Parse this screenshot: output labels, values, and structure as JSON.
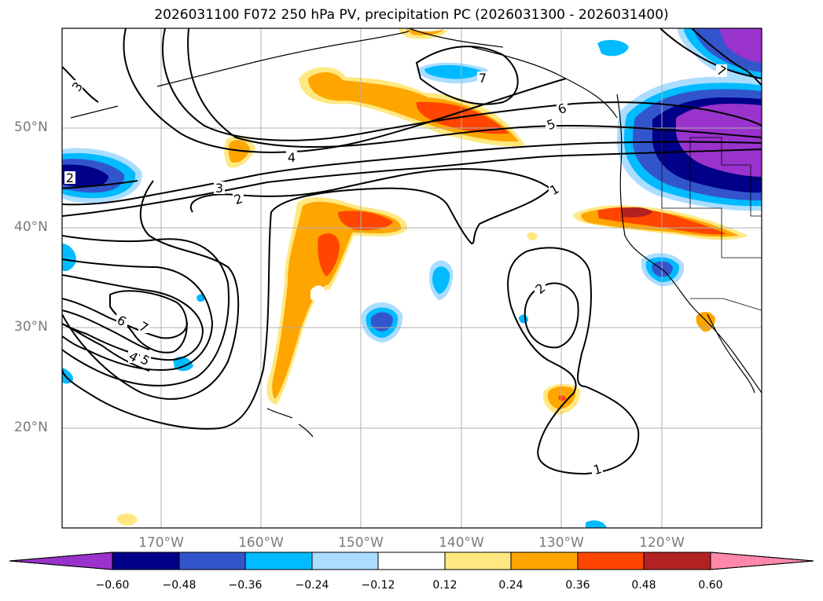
{
  "title": "2026031100 F072 250 hPa PV, precipitation PC (2026031300 - 2026031400)",
  "map": {
    "lat_labels": [
      "50°N",
      "40°N",
      "30°N",
      "20°N"
    ],
    "lon_labels": [
      "170°W",
      "160°W",
      "150°W",
      "140°W",
      "130°W",
      "120°W"
    ],
    "lat_values": [
      50,
      40,
      30,
      20
    ],
    "lon_values": [
      -170,
      -160,
      -150,
      -140,
      -130,
      -120
    ],
    "lat_range": [
      10,
      60
    ],
    "lon_range": [
      -180,
      -110
    ],
    "pv_contour_labels": [
      "3",
      "4",
      "3",
      "2",
      "1",
      "5",
      "6",
      "7",
      "7",
      "2",
      "1",
      "6",
      "7",
      "4",
      "5",
      "2"
    ],
    "grid": true
  },
  "colorbar": {
    "ticks": [
      "−0.60",
      "−0.48",
      "−0.36",
      "−0.24",
      "−0.12",
      "0.12",
      "0.24",
      "0.36",
      "0.48",
      "0.60"
    ],
    "colors": [
      "#9933CC",
      "#000088",
      "#3355CC",
      "#00BBFF",
      "#AADDFF",
      "#FFFFFF",
      "#FFE880",
      "#FFA500",
      "#FF4500",
      "#B22222",
      "#FF88AA"
    ]
  }
}
